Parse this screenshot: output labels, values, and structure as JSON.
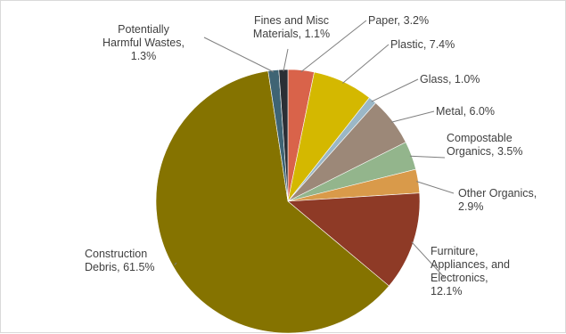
{
  "chart_data": {
    "type": "pie",
    "title": "",
    "start_angle_deg": 0,
    "direction": "clockwise",
    "series": [
      {
        "slices": [
          {
            "name": "Paper",
            "value": 3.2,
            "label": [
              "Paper, 3.2%"
            ],
            "color": "#d9634a"
          },
          {
            "name": "Plastic",
            "value": 7.4,
            "label": [
              "Plastic, 7.4%"
            ],
            "color": "#d4b800"
          },
          {
            "name": "Glass",
            "value": 1.0,
            "label": [
              "Glass, 1.0%"
            ],
            "color": "#9bb7c6"
          },
          {
            "name": "Metal",
            "value": 6.0,
            "label": [
              "Metal, 6.0%"
            ],
            "color": "#9c8878"
          },
          {
            "name": "Compostable Organics",
            "value": 3.5,
            "label": [
              "Compostable",
              "Organics, 3.5%"
            ],
            "color": "#93b58c"
          },
          {
            "name": "Other Organics",
            "value": 2.9,
            "label": [
              "Other Organics,",
              "2.9%"
            ],
            "color": "#d99a4a"
          },
          {
            "name": "Furniture, Appliances, and Electronics",
            "value": 12.1,
            "label": [
              "Furniture,",
              "Appliances, and",
              "Electronics,",
              "12.1%"
            ],
            "color": "#8e3a26"
          },
          {
            "name": "Construction Debris",
            "value": 61.5,
            "label": [
              "Construction",
              "Debris, 61.5%"
            ],
            "color": "#857300"
          },
          {
            "name": "Potentially Harmful Wastes",
            "value": 1.3,
            "label": [
              "Potentially",
              "Harmful Wastes,",
              "1.3%"
            ],
            "color": "#3f6474"
          },
          {
            "name": "Fines and Misc Materials",
            "value": 1.1,
            "label": [
              "Fines and Misc",
              "Materials, 1.1%"
            ],
            "color": "#2b2f35"
          }
        ]
      }
    ]
  }
}
